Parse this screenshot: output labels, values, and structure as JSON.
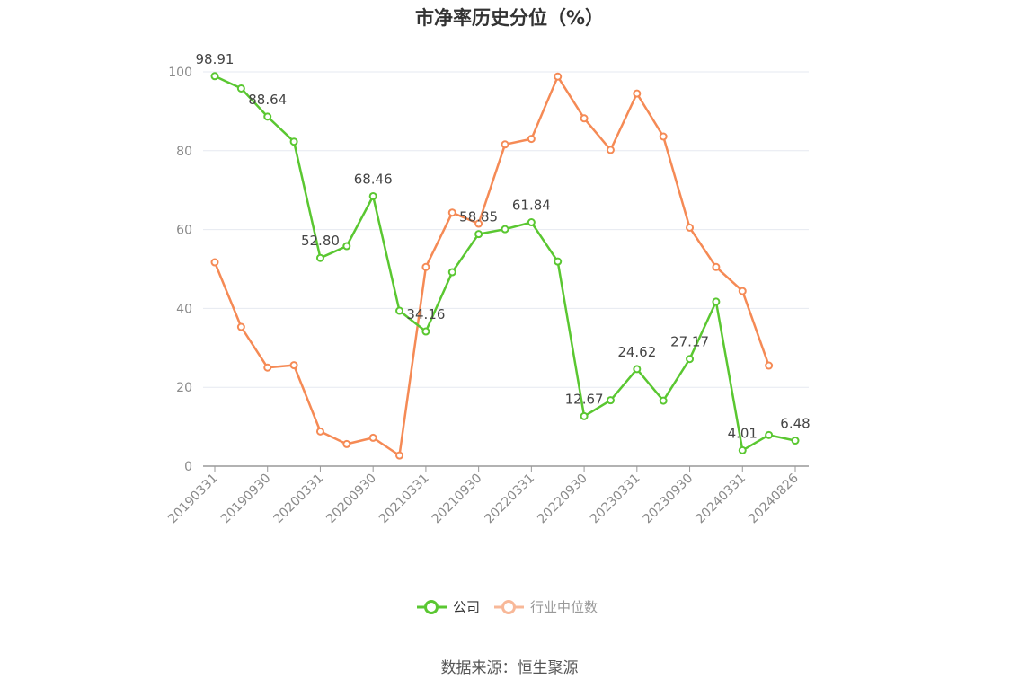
{
  "title": "市净率历史分位（%）",
  "source": "数据来源：恒生聚源",
  "colors": {
    "company": "#5ac731",
    "industry": "#f58a55",
    "industry_legend": "#f8b898",
    "grid": "#e6e9f0",
    "axis": "#999999"
  },
  "chart_data": {
    "type": "line",
    "title": "市净率历史分位（%）",
    "ylim": [
      0,
      100
    ],
    "yticks": [
      0,
      20,
      40,
      60,
      80,
      100
    ],
    "grid": true,
    "legend_position": "bottom",
    "x": [
      "20190331",
      "20190630",
      "20190930",
      "20191231",
      "20200331",
      "20200630",
      "20200930",
      "20201231",
      "20210331",
      "20210630",
      "20210930",
      "20211231",
      "20220331",
      "20220630",
      "20220930",
      "20221231",
      "20230331",
      "20230630",
      "20230930",
      "20231231",
      "20240331",
      "20240630",
      "20240826"
    ],
    "xtick_labels": [
      "20190331",
      "20190930",
      "20200331",
      "20200930",
      "20210331",
      "20210930",
      "20220331",
      "20220930",
      "20230331",
      "20230930",
      "20240331",
      "20240826"
    ],
    "xtick_indices": [
      0,
      2,
      4,
      6,
      8,
      10,
      12,
      14,
      16,
      18,
      20,
      22
    ],
    "series": [
      {
        "name": "公司",
        "values": [
          98.91,
          95.8,
          88.64,
          82.3,
          52.8,
          55.8,
          68.46,
          39.4,
          34.16,
          49.2,
          58.85,
          60.1,
          61.84,
          51.9,
          12.67,
          16.7,
          24.62,
          16.6,
          27.17,
          41.7,
          4.01,
          7.9,
          6.48
        ],
        "labels": {
          "0": "98.91",
          "2": "88.64",
          "4": "52.80",
          "6": "68.46",
          "8": "34.16",
          "10": "58.85",
          "12": "61.84",
          "14": "12.67",
          "16": "24.62",
          "18": "27.17",
          "20": "4.01",
          "22": "6.48"
        }
      },
      {
        "name": "行业中位数",
        "values": [
          51.7,
          35.3,
          25.0,
          25.6,
          8.8,
          5.6,
          7.2,
          2.7,
          50.5,
          64.3,
          61.5,
          81.6,
          83.0,
          98.8,
          88.2,
          80.2,
          94.5,
          83.6,
          60.5,
          50.5,
          44.4,
          25.5,
          null
        ]
      }
    ]
  }
}
